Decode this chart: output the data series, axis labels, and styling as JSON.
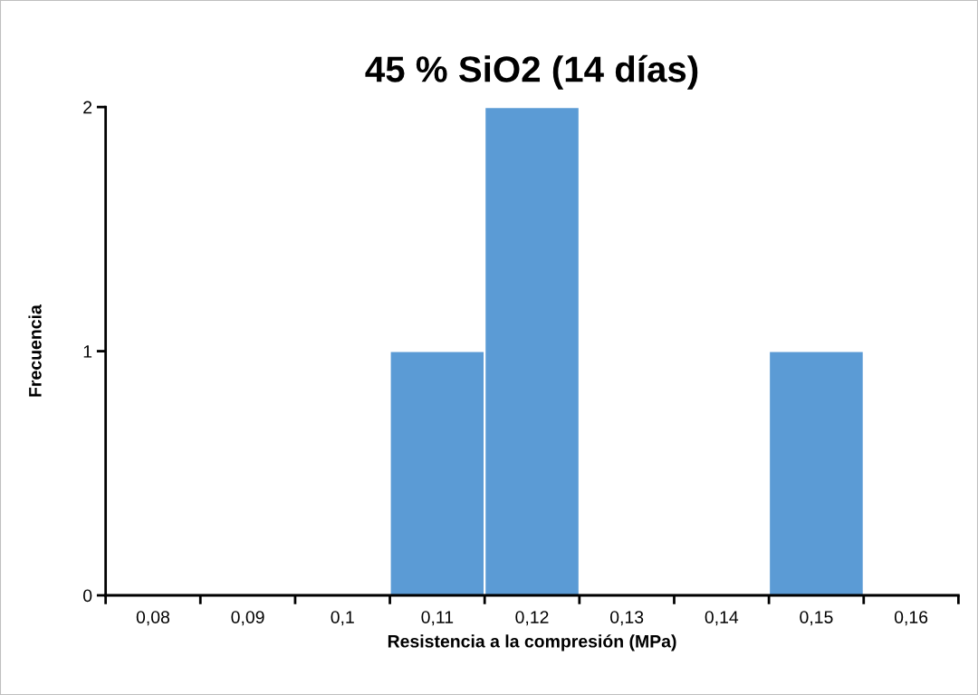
{
  "chart_data": {
    "type": "bar",
    "title": "45 % SiO2 (14 días)",
    "xlabel": "Resistencia a la compresión (MPa)",
    "ylabel": "Frecuencia",
    "categories": [
      "0,08",
      "0,09",
      "0,1",
      "0,11",
      "0,12",
      "0,13",
      "0,14",
      "0,15",
      "0,16"
    ],
    "values": [
      0,
      0,
      0,
      1,
      2,
      0,
      0,
      1,
      0
    ],
    "color": "#5b9bd5",
    "ylim": [
      0,
      2
    ],
    "yticks": [
      0,
      1,
      2
    ],
    "grid": false,
    "legend": false
  }
}
